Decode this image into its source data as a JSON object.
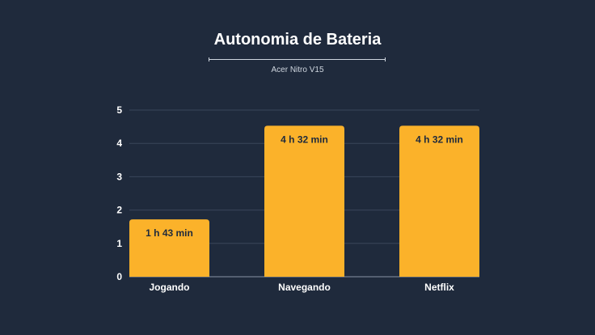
{
  "chart_data": {
    "type": "bar",
    "title": "Autonomia de Bateria",
    "subtitle": "Acer Nitro V15",
    "categories": [
      "Jogando",
      "Navegando",
      "Netflix"
    ],
    "values": [
      1.72,
      4.53,
      4.53
    ],
    "data_labels": [
      "1 h 43 min",
      "4 h 32 min",
      "4 h 32 min"
    ],
    "ylim": [
      0,
      5
    ],
    "yticks": [
      "0",
      "1",
      "2",
      "3",
      "4",
      "5"
    ],
    "grid": true,
    "colors": {
      "bar": "#fbb22a",
      "background": "#1f2a3c",
      "grid": "#3a465a",
      "text": "#ffffff"
    }
  }
}
